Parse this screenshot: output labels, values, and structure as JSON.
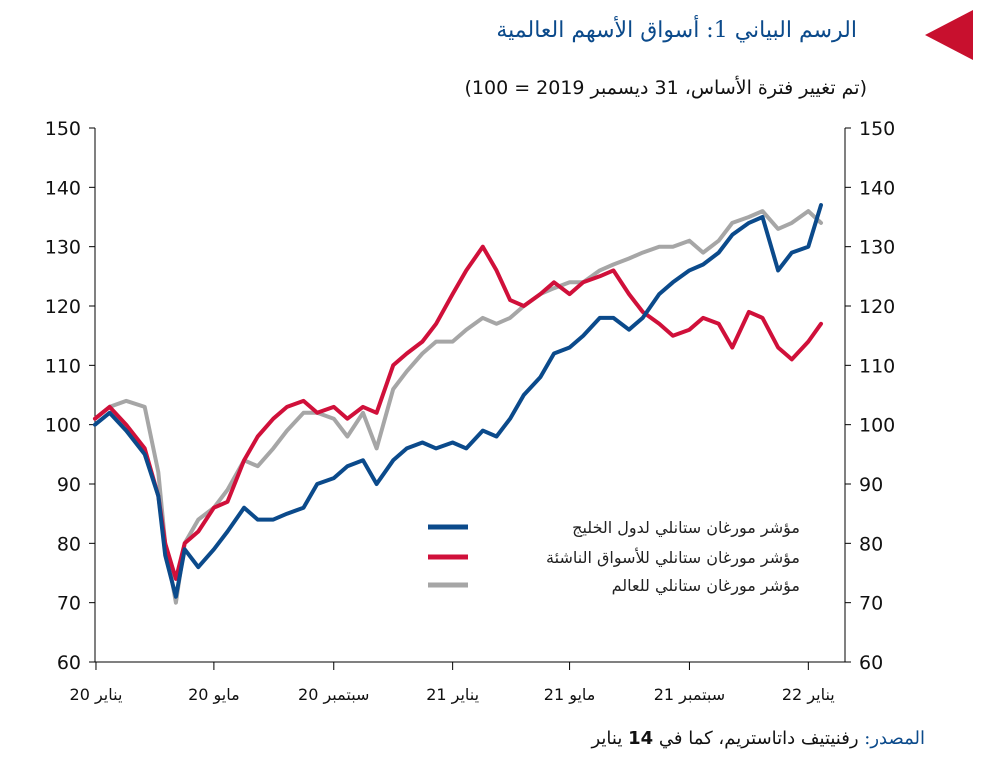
{
  "header": {
    "title": "الرسم البياني 1: أسواق الأسهم العالمية",
    "subtitle": "(تم تغيير فترة الأساس، 31 ديسمبر 2019 = 100)",
    "flag_color": "#c8102e",
    "title_color": "#0b4a8b"
  },
  "footer": {
    "source_label": "المصدر:",
    "source_text_pre": "رفنيتيف داتاستريم، كما في",
    "source_date_num": "14",
    "source_text_post": "يناير"
  },
  "chart_data": {
    "type": "line",
    "title": "الرسم البياني 1: أسواق الأسهم العالمية",
    "subtitle": "(تم تغيير فترة الأساس، 31 ديسمبر 2019 = 100)",
    "ylim": [
      60,
      150
    ],
    "yticks": [
      60,
      70,
      80,
      90,
      100,
      110,
      120,
      130,
      140,
      150
    ],
    "y_axes": [
      "left",
      "right"
    ],
    "x_range_months": [
      "2019-12-31",
      "2022-01-14"
    ],
    "x_ticks": [
      {
        "date": "2020-01",
        "label": "يناير 20"
      },
      {
        "date": "2020-05",
        "label": "مايو 20"
      },
      {
        "date": "2020-09",
        "label": "سبتمبر 20"
      },
      {
        "date": "2021-01",
        "label": "يناير 21"
      },
      {
        "date": "2021-05",
        "label": "مايو 21"
      },
      {
        "date": "2021-09",
        "label": "سبتمبر 21"
      },
      {
        "date": "2022-01",
        "label": "يناير 22"
      }
    ],
    "grid": false,
    "legend_position": "bottom-right",
    "series": [
      {
        "name": "مؤشر مورغان ستانلي لدول الخليج",
        "color": "#0b4a8b",
        "x": [
          "2019-12-31",
          "2020-01-15",
          "2020-02-01",
          "2020-02-20",
          "2020-03-05",
          "2020-03-12",
          "2020-03-23",
          "2020-04-01",
          "2020-04-15",
          "2020-05-01",
          "2020-05-15",
          "2020-06-01",
          "2020-06-15",
          "2020-07-01",
          "2020-07-15",
          "2020-08-01",
          "2020-08-15",
          "2020-09-01",
          "2020-09-15",
          "2020-10-01",
          "2020-10-15",
          "2020-11-01",
          "2020-11-15",
          "2020-12-01",
          "2020-12-15",
          "2021-01-01",
          "2021-01-15",
          "2021-02-01",
          "2021-02-15",
          "2021-03-01",
          "2021-03-15",
          "2021-04-01",
          "2021-04-15",
          "2021-05-01",
          "2021-05-15",
          "2021-06-01",
          "2021-06-15",
          "2021-07-01",
          "2021-07-15",
          "2021-08-01",
          "2021-08-15",
          "2021-09-01",
          "2021-09-15",
          "2021-10-01",
          "2021-10-15",
          "2021-11-01",
          "2021-11-15",
          "2021-12-01",
          "2021-12-15",
          "2022-01-01",
          "2022-01-14"
        ],
        "y": [
          100,
          102,
          99,
          95,
          88,
          78,
          71,
          79,
          76,
          79,
          82,
          86,
          84,
          84,
          85,
          86,
          90,
          91,
          93,
          94,
          90,
          94,
          96,
          97,
          96,
          97,
          96,
          99,
          98,
          101,
          105,
          108,
          112,
          113,
          115,
          118,
          118,
          116,
          118,
          122,
          124,
          126,
          127,
          129,
          132,
          134,
          135,
          126,
          129,
          130,
          137
        ]
      },
      {
        "name": "مؤشر مورغان ستانلي للأسواق الناشئة",
        "color": "#d0103a",
        "x": [
          "2019-12-31",
          "2020-01-15",
          "2020-02-01",
          "2020-02-20",
          "2020-03-05",
          "2020-03-12",
          "2020-03-23",
          "2020-04-01",
          "2020-04-15",
          "2020-05-01",
          "2020-05-15",
          "2020-06-01",
          "2020-06-15",
          "2020-07-01",
          "2020-07-15",
          "2020-08-01",
          "2020-08-15",
          "2020-09-01",
          "2020-09-15",
          "2020-10-01",
          "2020-10-15",
          "2020-11-01",
          "2020-11-15",
          "2020-12-01",
          "2020-12-15",
          "2021-01-01",
          "2021-01-15",
          "2021-02-01",
          "2021-02-15",
          "2021-03-01",
          "2021-03-15",
          "2021-04-01",
          "2021-04-15",
          "2021-05-01",
          "2021-05-15",
          "2021-06-01",
          "2021-06-15",
          "2021-07-01",
          "2021-07-15",
          "2021-08-01",
          "2021-08-15",
          "2021-09-01",
          "2021-09-15",
          "2021-10-01",
          "2021-10-15",
          "2021-11-01",
          "2021-11-15",
          "2021-12-01",
          "2021-12-15",
          "2022-01-01",
          "2022-01-14"
        ],
        "y": [
          101,
          103,
          100,
          96,
          88,
          80,
          74,
          80,
          82,
          86,
          87,
          94,
          98,
          101,
          103,
          104,
          102,
          103,
          101,
          103,
          102,
          110,
          112,
          114,
          117,
          122,
          126,
          130,
          126,
          121,
          120,
          122,
          124,
          122,
          124,
          125,
          126,
          122,
          119,
          117,
          115,
          116,
          118,
          117,
          113,
          119,
          118,
          113,
          111,
          114,
          117
        ]
      },
      {
        "name": "مؤشر مورغان ستانلي للعالم",
        "color": "#a6a6a6",
        "x": [
          "2019-12-31",
          "2020-01-15",
          "2020-02-01",
          "2020-02-20",
          "2020-03-05",
          "2020-03-12",
          "2020-03-23",
          "2020-04-01",
          "2020-04-15",
          "2020-05-01",
          "2020-05-15",
          "2020-06-01",
          "2020-06-15",
          "2020-07-01",
          "2020-07-15",
          "2020-08-01",
          "2020-08-15",
          "2020-09-01",
          "2020-09-15",
          "2020-10-01",
          "2020-10-15",
          "2020-11-01",
          "2020-11-15",
          "2020-12-01",
          "2020-12-15",
          "2021-01-01",
          "2021-01-15",
          "2021-02-01",
          "2021-02-15",
          "2021-03-01",
          "2021-03-15",
          "2021-04-01",
          "2021-04-15",
          "2021-05-01",
          "2021-05-15",
          "2021-06-01",
          "2021-06-15",
          "2021-07-01",
          "2021-07-15",
          "2021-08-01",
          "2021-08-15",
          "2021-09-01",
          "2021-09-15",
          "2021-10-01",
          "2021-10-15",
          "2021-11-01",
          "2021-11-15",
          "2021-12-01",
          "2021-12-15",
          "2022-01-01",
          "2022-01-14"
        ],
        "y": [
          101,
          103,
          104,
          103,
          92,
          80,
          70,
          80,
          84,
          86,
          89,
          94,
          93,
          96,
          99,
          102,
          102,
          101,
          98,
          102,
          96,
          106,
          109,
          112,
          114,
          114,
          116,
          118,
          117,
          118,
          120,
          122,
          123,
          124,
          124,
          126,
          127,
          128,
          129,
          130,
          130,
          131,
          129,
          131,
          134,
          135,
          136,
          133,
          134,
          136,
          134
        ]
      }
    ]
  }
}
